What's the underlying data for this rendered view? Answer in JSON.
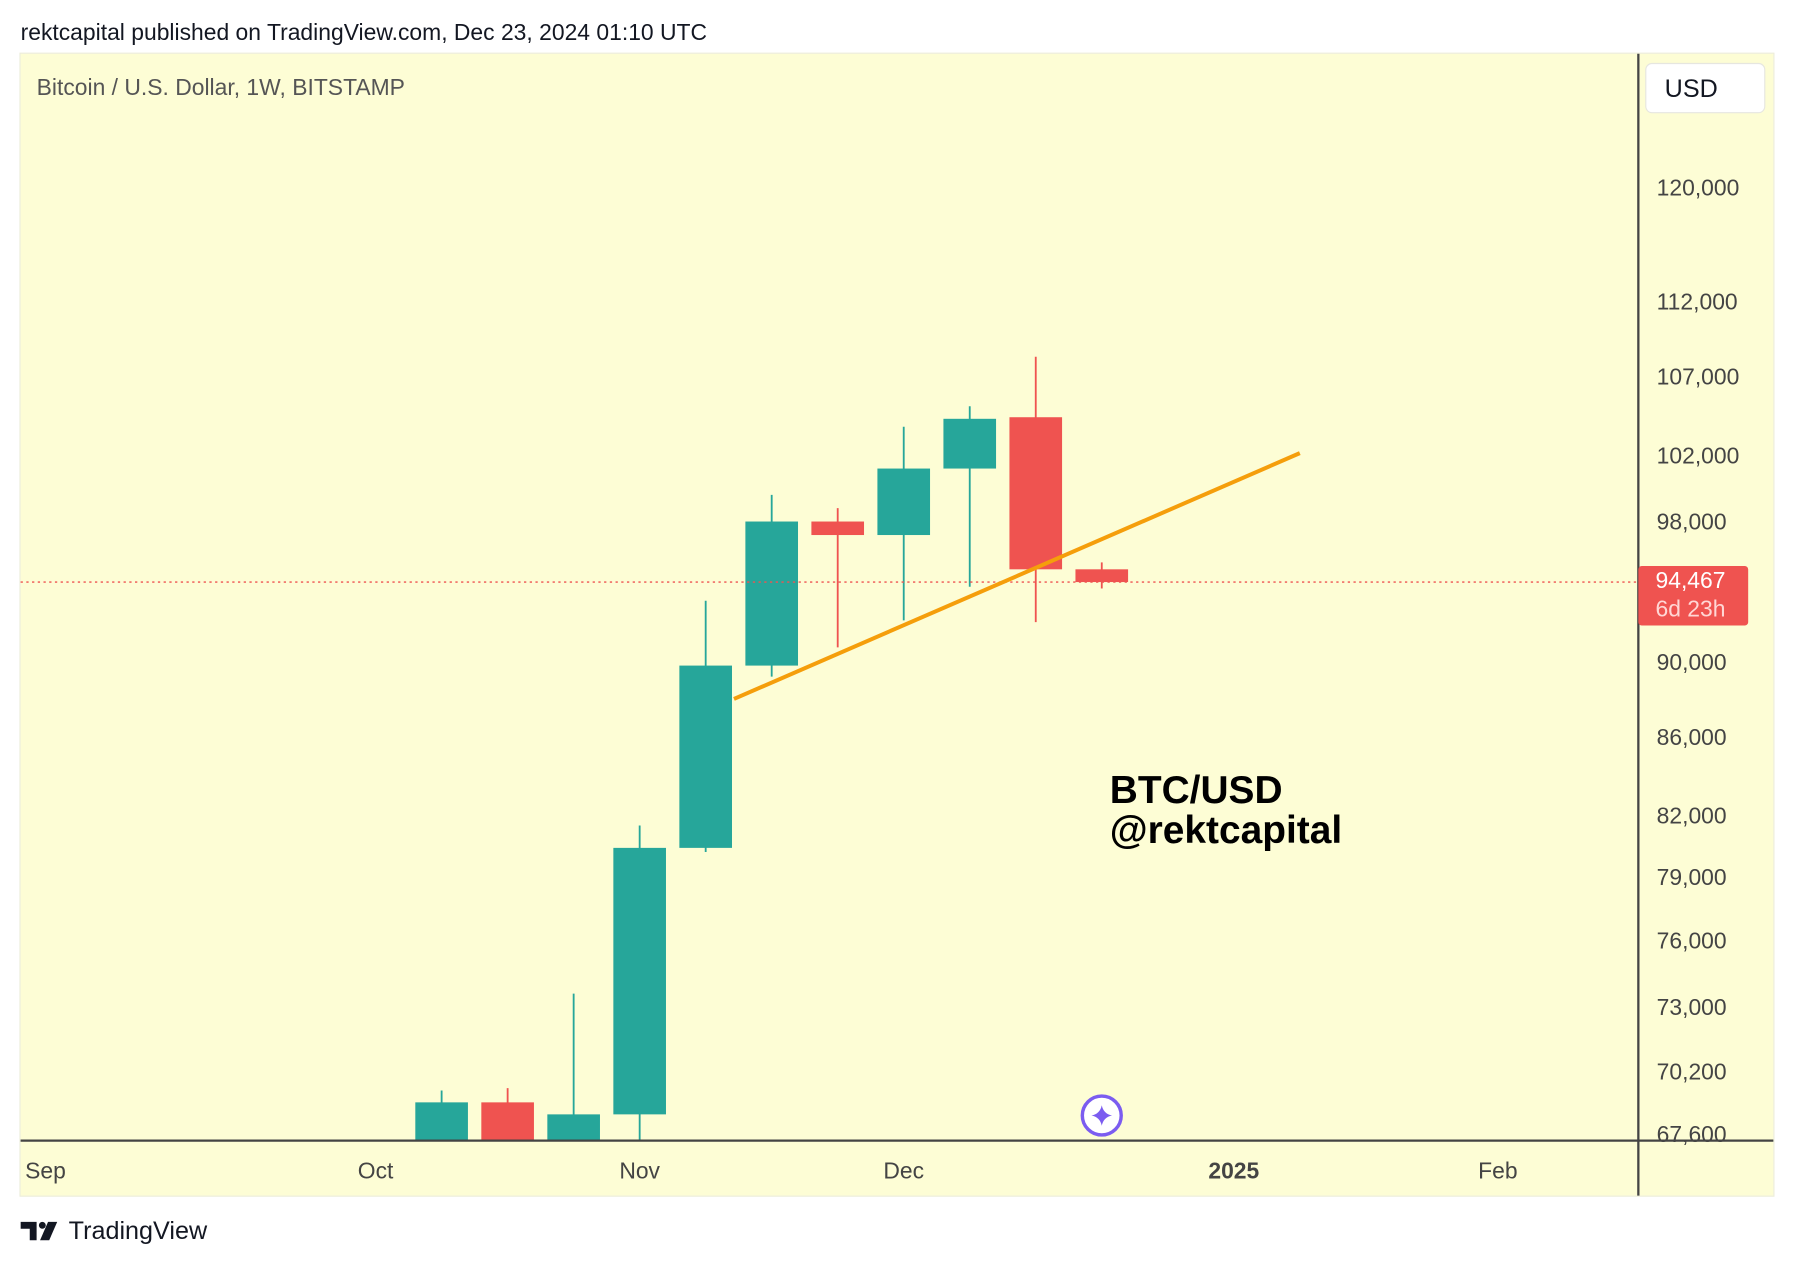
{
  "header": {
    "published": "rektcapital published on TradingView.com, Dec 23, 2024 01:10 UTC"
  },
  "chart_header": {
    "symbol_title": "Bitcoin / U.S. Dollar, 1W, BITSTAMP",
    "currency_button": "USD"
  },
  "footer": {
    "brand": "TradingView"
  },
  "chart_data": {
    "type": "candlestick",
    "title": "Bitcoin / U.S. Dollar, 1W, BITSTAMP",
    "y_scale": "log",
    "ylim": [
      67600,
      128000
    ],
    "grid": false,
    "y_ticks": [
      "120,000",
      "112,000",
      "107,000",
      "102,000",
      "98,000",
      "90,000",
      "86,000",
      "82,000",
      "79,000",
      "76,000",
      "73,000",
      "70,200",
      "67,600"
    ],
    "x_ticks": [
      {
        "label": "Sep",
        "date": "2024-09-02",
        "bold": false
      },
      {
        "label": "Oct",
        "date": "2024-10-07",
        "bold": false
      },
      {
        "label": "Nov",
        "date": "2024-11-04",
        "bold": false
      },
      {
        "label": "Dec",
        "date": "2024-12-02",
        "bold": false
      },
      {
        "label": "2025",
        "date": "2025-01-06",
        "bold": true
      },
      {
        "label": "Feb",
        "date": "2025-02-03",
        "bold": false
      }
    ],
    "candles": [
      {
        "date": "2024-10-14",
        "open": 62850,
        "high": 69400,
        "low": 62500,
        "close": 68900
      },
      {
        "date": "2024-10-21",
        "open": 68900,
        "high": 69500,
        "low": 65100,
        "close": 67000
      },
      {
        "date": "2024-10-28",
        "open": 67000,
        "high": 73600,
        "low": 66800,
        "close": 68400
      },
      {
        "date": "2024-11-04",
        "open": 68400,
        "high": 81500,
        "low": 66900,
        "close": 80400
      },
      {
        "date": "2024-11-11",
        "open": 80400,
        "high": 93400,
        "low": 80200,
        "close": 89800
      },
      {
        "date": "2024-11-18",
        "open": 89800,
        "high": 99600,
        "low": 89200,
        "close": 98000
      },
      {
        "date": "2024-11-25",
        "open": 98000,
        "high": 98800,
        "low": 90800,
        "close": 97200
      },
      {
        "date": "2024-12-02",
        "open": 97200,
        "high": 103800,
        "low": 92300,
        "close": 101200
      },
      {
        "date": "2024-12-09",
        "open": 101200,
        "high": 105100,
        "low": 94200,
        "close": 104300
      },
      {
        "date": "2024-12-16",
        "open": 104400,
        "high": 108300,
        "low": 92200,
        "close": 95200
      },
      {
        "date": "2024-12-23",
        "open": 95200,
        "high": 95600,
        "low": 94100,
        "close": 94467
      }
    ],
    "last_price": {
      "value": "94,467",
      "countdown": "6d 23h"
    },
    "trendline": {
      "start": {
        "date": "2024-11-14",
        "price": 88000
      },
      "end": {
        "date": "2025-01-13",
        "price": 102150
      }
    },
    "annotation": {
      "line1": "BTC/USD",
      "line2": "@rektcapital"
    },
    "colors": {
      "up": "#26a69a",
      "down": "#ef5350",
      "trendline": "#f59e0b",
      "background": "#fdfdd5",
      "marker": "#7b5cf0"
    }
  }
}
